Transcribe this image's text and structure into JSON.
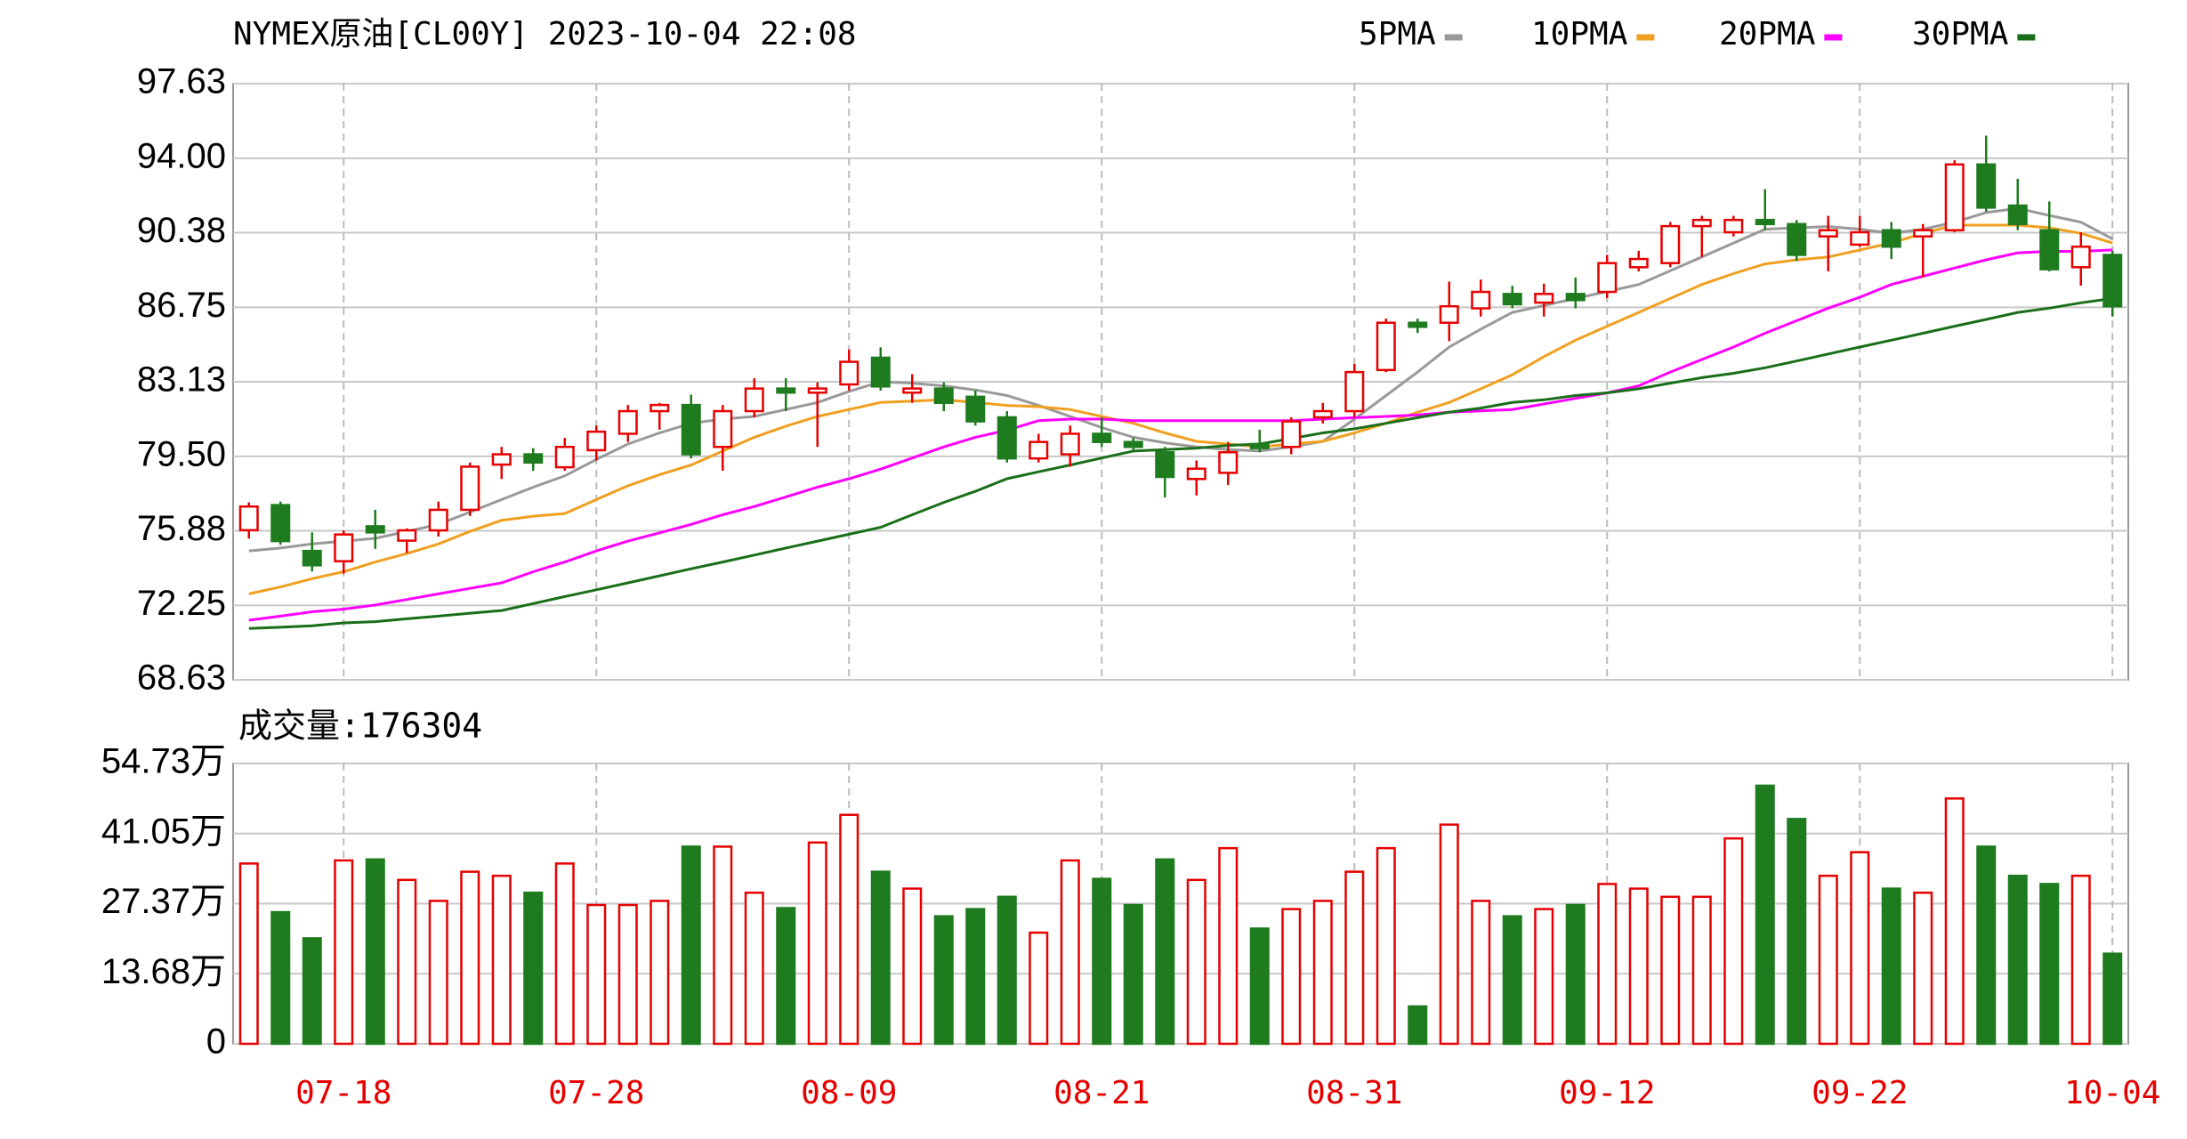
{
  "chart_data": [
    {
      "type": "candlestick",
      "title": "NYMEX原油[CL00Y] 2023-10-04 22:08",
      "categories": [
        null,
        null,
        null,
        "07-18",
        null,
        null,
        null,
        null,
        null,
        null,
        null,
        "07-28",
        null,
        null,
        null,
        null,
        null,
        null,
        null,
        "08-09",
        null,
        null,
        null,
        null,
        null,
        null,
        null,
        "08-21",
        null,
        null,
        null,
        null,
        null,
        null,
        null,
        "08-31",
        null,
        null,
        null,
        null,
        null,
        null,
        null,
        "09-12",
        null,
        null,
        null,
        null,
        null,
        null,
        null,
        "09-22",
        null,
        null,
        null,
        null,
        null,
        null,
        null,
        "10-04"
      ],
      "open": [
        75.91,
        77.13,
        74.9,
        74.4,
        76.1,
        75.4,
        75.9,
        76.9,
        79.1,
        79.6,
        78.97,
        79.8,
        80.6,
        81.7,
        82.0,
        79.96,
        81.7,
        82.8,
        82.6,
        83.0,
        84.3,
        82.6,
        82.8,
        82.4,
        81.4,
        79.4,
        79.6,
        80.6,
        80.2,
        79.7,
        78.4,
        78.7,
        80.1,
        79.96,
        81.4,
        81.7,
        83.7,
        86.0,
        86.0,
        86.7,
        87.4,
        86.98,
        87.4,
        87.5,
        88.7,
        88.9,
        90.7,
        90.4,
        91.0,
        90.8,
        90.2,
        89.8,
        90.5,
        90.2,
        90.5,
        93.7,
        91.7,
        90.5,
        88.7,
        89.3
      ],
      "high": [
        77.26,
        77.3,
        75.8,
        75.9,
        76.9,
        76.0,
        77.3,
        79.2,
        79.96,
        79.9,
        80.4,
        81.0,
        82.0,
        82.1,
        82.5,
        82.0,
        83.3,
        83.3,
        83.1,
        84.7,
        84.8,
        83.5,
        83.1,
        82.7,
        81.7,
        80.6,
        81.0,
        81.4,
        80.4,
        79.96,
        79.3,
        80.2,
        80.8,
        81.4,
        82.1,
        84.0,
        86.2,
        86.2,
        88.0,
        88.1,
        87.8,
        87.9,
        88.2,
        89.3,
        89.5,
        90.9,
        91.2,
        91.2,
        92.5,
        91.0,
        91.2,
        91.2,
        90.9,
        90.8,
        93.9,
        95.1,
        93.0,
        91.9,
        90.4,
        89.5
      ],
      "low": [
        75.5,
        75.2,
        73.9,
        73.8,
        75.0,
        74.8,
        75.6,
        76.6,
        78.4,
        78.8,
        78.8,
        79.3,
        80.2,
        80.8,
        79.4,
        78.8,
        81.4,
        81.7,
        79.96,
        82.7,
        82.7,
        82.1,
        81.7,
        81.0,
        79.2,
        79.2,
        79.0,
        79.96,
        79.8,
        77.5,
        77.6,
        78.1,
        79.7,
        79.6,
        81.1,
        81.4,
        83.6,
        85.5,
        85.1,
        86.3,
        86.7,
        86.3,
        86.7,
        87.2,
        88.5,
        88.7,
        89.2,
        90.2,
        90.5,
        89.0,
        88.5,
        89.7,
        89.1,
        88.2,
        90.4,
        91.4,
        90.5,
        88.5,
        87.8,
        86.3
      ],
      "close": [
        77.06,
        75.38,
        74.2,
        75.7,
        75.8,
        75.9,
        76.9,
        79.0,
        79.6,
        79.2,
        79.96,
        80.7,
        81.7,
        82.0,
        79.6,
        81.7,
        82.8,
        82.6,
        82.8,
        84.1,
        82.9,
        82.8,
        82.1,
        81.2,
        79.4,
        80.2,
        80.6,
        80.2,
        79.96,
        78.5,
        78.9,
        79.7,
        79.9,
        81.2,
        81.7,
        83.6,
        86.0,
        85.8,
        86.8,
        87.5,
        86.9,
        87.4,
        87.1,
        88.9,
        89.1,
        90.7,
        91.0,
        91.0,
        90.8,
        89.3,
        90.5,
        90.4,
        89.7,
        90.5,
        93.7,
        91.6,
        90.8,
        88.6,
        89.7,
        86.8
      ],
      "series": [
        {
          "name": "5PMA",
          "color": "#999999",
          "values": [
            74.9,
            75.04,
            75.24,
            75.38,
            75.51,
            75.85,
            76.19,
            76.79,
            77.4,
            78.0,
            78.55,
            79.35,
            80.1,
            80.64,
            81.11,
            81.31,
            81.44,
            81.78,
            82.12,
            82.66,
            83.13,
            83.06,
            82.93,
            82.73,
            82.46,
            81.98,
            81.44,
            80.9,
            80.43,
            80.16,
            79.96,
            79.83,
            79.76,
            79.96,
            80.23,
            81.31,
            82.46,
            83.6,
            84.82,
            85.69,
            86.5,
            86.84,
            87.18,
            87.52,
            87.86,
            88.53,
            89.2,
            89.88,
            90.55,
            90.62,
            90.68,
            90.55,
            90.35,
            90.55,
            90.89,
            91.36,
            91.56,
            91.22,
            90.89,
            90.08
          ]
        },
        {
          "name": "10PMA",
          "color": "#f0a020",
          "values": [
            72.81,
            73.15,
            73.55,
            73.89,
            74.36,
            74.77,
            75.24,
            75.85,
            76.39,
            76.59,
            76.72,
            77.4,
            78.07,
            78.61,
            79.08,
            79.76,
            80.43,
            80.97,
            81.44,
            81.78,
            82.12,
            82.19,
            82.25,
            82.12,
            81.98,
            81.92,
            81.78,
            81.44,
            81.11,
            80.64,
            80.23,
            80.1,
            79.96,
            80.1,
            80.23,
            80.64,
            81.11,
            81.65,
            82.12,
            82.79,
            83.47,
            84.35,
            85.15,
            85.83,
            86.5,
            87.18,
            87.86,
            88.39,
            88.86,
            89.06,
            89.2,
            89.54,
            89.88,
            90.35,
            90.75,
            90.75,
            90.75,
            90.62,
            90.35,
            89.88
          ]
        },
        {
          "name": "20PMA",
          "color": "#ff00ff",
          "values": [
            71.53,
            71.73,
            71.94,
            72.07,
            72.27,
            72.54,
            72.81,
            73.08,
            73.35,
            73.89,
            74.36,
            74.9,
            75.38,
            75.78,
            76.19,
            76.66,
            77.06,
            77.53,
            78.0,
            78.41,
            78.88,
            79.42,
            79.96,
            80.43,
            80.77,
            81.24,
            81.31,
            81.31,
            81.24,
            81.24,
            81.24,
            81.24,
            81.24,
            81.24,
            81.31,
            81.38,
            81.44,
            81.51,
            81.65,
            81.71,
            81.78,
            82.05,
            82.32,
            82.59,
            82.93,
            83.6,
            84.21,
            84.82,
            85.49,
            86.1,
            86.71,
            87.24,
            87.86,
            88.26,
            88.66,
            89.06,
            89.4,
            89.47,
            89.47,
            89.54
          ]
        },
        {
          "name": "30PMA",
          "color": "#1a6e1a",
          "values": [
            71.13,
            71.19,
            71.26,
            71.4,
            71.46,
            71.6,
            71.73,
            71.87,
            72.0,
            72.34,
            72.68,
            73.01,
            73.35,
            73.69,
            74.03,
            74.36,
            74.7,
            75.04,
            75.38,
            75.71,
            76.05,
            76.66,
            77.26,
            77.8,
            78.41,
            78.75,
            79.08,
            79.42,
            79.76,
            79.83,
            79.9,
            80.03,
            80.1,
            80.37,
            80.64,
            80.84,
            81.11,
            81.38,
            81.65,
            81.85,
            82.12,
            82.25,
            82.46,
            82.59,
            82.79,
            83.06,
            83.33,
            83.54,
            83.81,
            84.14,
            84.48,
            84.82,
            85.15,
            85.49,
            85.83,
            86.16,
            86.5,
            86.71,
            86.97,
            87.18
          ]
        }
      ],
      "up_color": "#e60000",
      "down_color": "#1e7b1e",
      "ylim": [
        68.63,
        97.63
      ],
      "yticks": [
        68.63,
        72.25,
        75.88,
        {
          "value": 79.5,
          "label": "79.50"
        },
        83.13,
        86.75,
        90.38,
        {
          "value": 94,
          "label": "94.00"
        },
        97.63
      ],
      "grid": true
    },
    {
      "type": "bar",
      "title": "成交量:176304",
      "values": [
        35.2,
        25.7,
        20.6,
        35.8,
        36.0,
        32.0,
        27.9,
        33.6,
        32.8,
        29.5,
        35.2,
        27.1,
        27.1,
        27.9,
        38.5,
        38.5,
        29.5,
        26.5,
        39.3,
        44.7,
        33.6,
        30.3,
        24.9,
        26.3,
        28.7,
        21.7,
        35.8,
        32.2,
        27.1,
        36.0,
        32.0,
        38.2,
        22.5,
        26.3,
        27.9,
        33.6,
        38.2,
        7.3,
        42.8,
        27.9,
        24.9,
        26.3,
        27.1,
        31.2,
        30.3,
        28.7,
        28.7,
        40.1,
        50.4,
        43.9,
        32.8,
        37.4,
        30.3,
        29.5,
        47.9,
        38.5,
        32.8,
        31.2,
        32.8,
        17.6
      ],
      "ylim": [
        0,
        54.73
      ],
      "yticks": [
        0,
        {
          "value": 13.68,
          "label": "13.68万"
        },
        {
          "value": 27.37,
          "label": "27.37万"
        },
        {
          "value": 41.05,
          "label": "41.05万"
        },
        {
          "value": 54.73,
          "label": "54.73万"
        }
      ],
      "grid": true
    }
  ]
}
